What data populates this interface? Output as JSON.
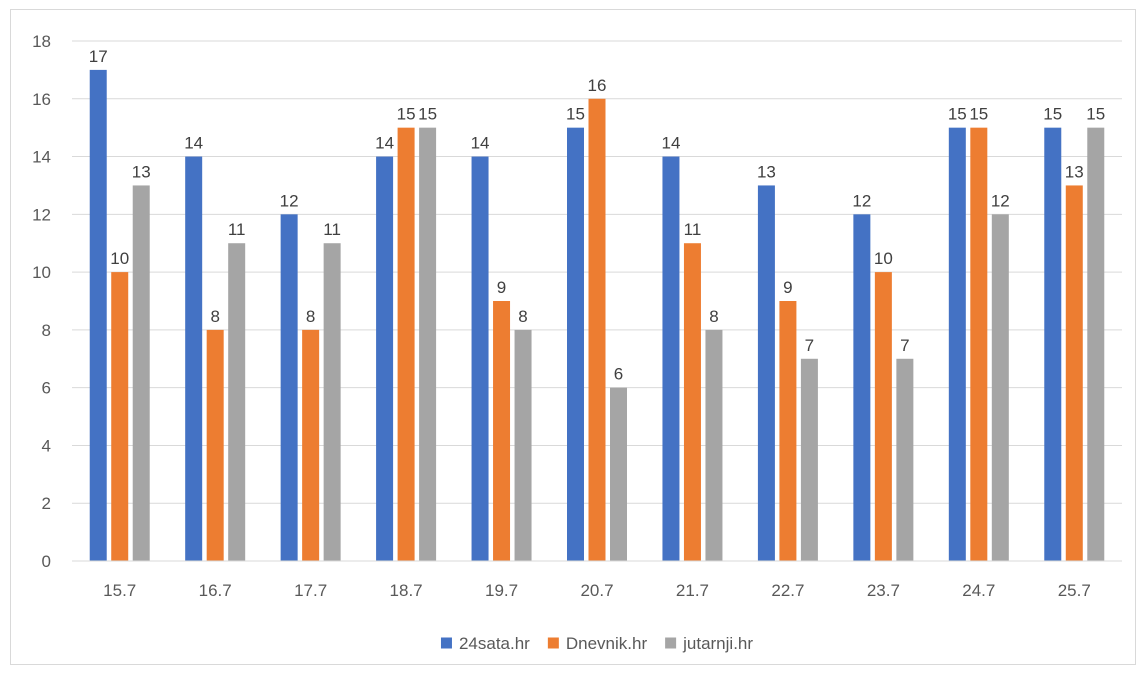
{
  "chart_data": {
    "type": "bar",
    "title": "",
    "xlabel": "",
    "ylabel": "",
    "categories": [
      "15.7",
      "16.7",
      "17.7",
      "18.7",
      "19.7",
      "20.7",
      "21.7",
      "22.7",
      "23.7",
      "24.7",
      "25.7"
    ],
    "series": [
      {
        "name": "24sata.hr",
        "color": "#4472c4",
        "values": [
          17,
          14,
          12,
          14,
          14,
          15,
          14,
          13,
          12,
          15,
          15
        ]
      },
      {
        "name": "Dnevnik.hr",
        "color": "#ed7d31",
        "values": [
          10,
          8,
          8,
          15,
          9,
          16,
          11,
          9,
          10,
          15,
          13
        ]
      },
      {
        "name": "jutarnji.hr",
        "color": "#a5a5a5",
        "values": [
          13,
          11,
          11,
          15,
          8,
          6,
          8,
          7,
          7,
          12,
          15
        ]
      }
    ],
    "ylim": [
      0,
      18
    ],
    "yticks": [
      0,
      2,
      4,
      6,
      8,
      10,
      12,
      14,
      16,
      18
    ],
    "grid": true,
    "legend": "bottom",
    "data_labels": true
  }
}
